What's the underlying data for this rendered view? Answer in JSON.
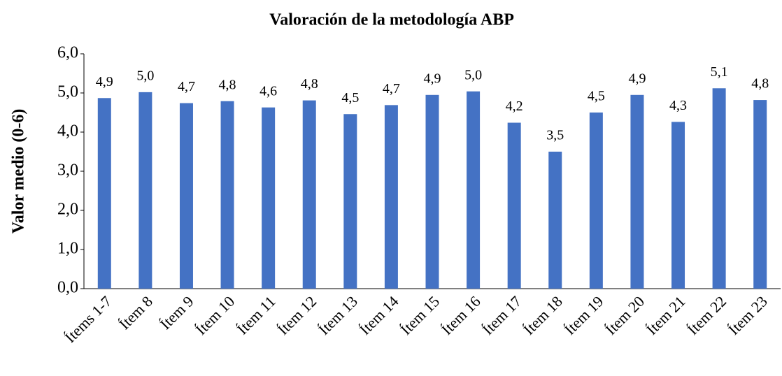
{
  "chart_data": {
    "type": "bar",
    "title": "Valoración de la metodología ABP",
    "y_label": "Valor medio (0-6)",
    "categories": [
      "Ítems 1-7",
      "Ítem 8",
      "Ítem 9",
      "Ítem 10",
      "Ítem 11",
      "Ítem 12",
      "Ítem 13",
      "Ítem 14",
      "Ítem 15",
      "Ítem 16",
      "Ítem 17",
      "Ítem 18",
      "Ítem 19",
      "Ítem 20",
      "Ítem 21",
      "Ítem 22",
      "Ítem 23"
    ],
    "values": [
      4.87,
      5.02,
      4.74,
      4.79,
      4.63,
      4.81,
      4.46,
      4.69,
      4.95,
      5.04,
      4.24,
      3.5,
      4.5,
      4.95,
      4.26,
      5.12,
      4.82
    ],
    "value_labels": [
      "4,9",
      "5,0",
      "4,7",
      "4,8",
      "4,6",
      "4,8",
      "4,5",
      "4,7",
      "4,9",
      "5,0",
      "4,2",
      "3,5",
      "4,5",
      "4,9",
      "4,3",
      "5,1",
      "4,8"
    ],
    "color": "#4472c4",
    "ylim": [
      0,
      6
    ],
    "yticks": [
      {
        "value": 0,
        "label": "0,0"
      },
      {
        "value": 1,
        "label": "1,0"
      },
      {
        "value": 2,
        "label": "2,0"
      },
      {
        "value": 3,
        "label": "3,0"
      },
      {
        "value": 4,
        "label": "4,0"
      },
      {
        "value": 5,
        "label": "5,0"
      },
      {
        "value": 6,
        "label": "6,0"
      }
    ],
    "grid": false
  }
}
